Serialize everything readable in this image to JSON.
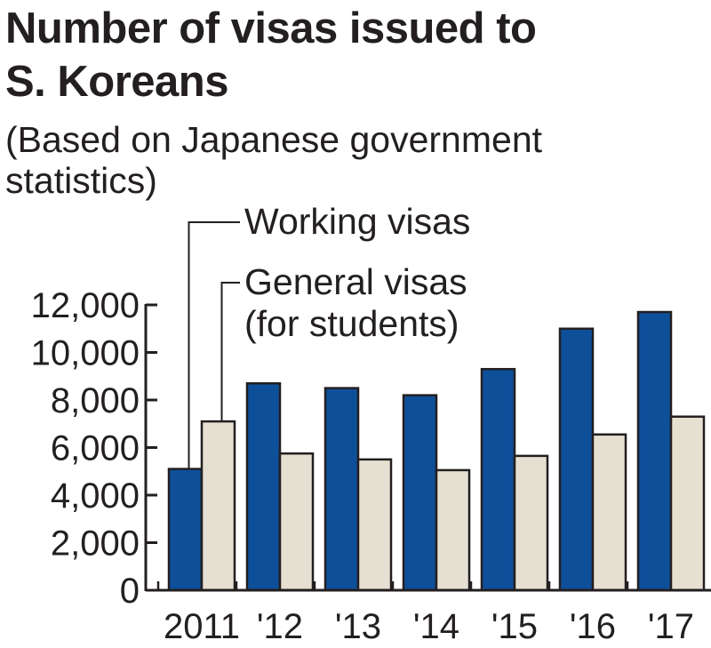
{
  "chart_data": {
    "type": "bar",
    "title_lines": [
      "Number of visas issued to",
      "S. Koreans"
    ],
    "subtitle_lines": [
      "(Based on Japanese government",
      "statistics)"
    ],
    "categories": [
      "2011",
      "'12",
      "'13",
      "'14",
      "'15",
      "'16",
      "'17"
    ],
    "series": [
      {
        "name": "Working visas",
        "color": "#0e4f9a",
        "values": [
          5100,
          8700,
          8500,
          8200,
          9300,
          11000,
          11700
        ]
      },
      {
        "name": "General visas",
        "name_line2": "(for students)",
        "color": "#e5e0d1",
        "values": [
          7100,
          5750,
          5500,
          5050,
          5650,
          6550,
          7300
        ]
      }
    ],
    "yticks": [
      "0",
      "2,000",
      "4,000",
      "6,000",
      "8,000",
      "10,000",
      "12,000"
    ],
    "ytick_values": [
      0,
      2000,
      4000,
      6000,
      8000,
      10000,
      12000
    ],
    "ylim": [
      0,
      12000
    ],
    "xlabel": "",
    "ylabel": "",
    "grid": false,
    "legend_placement": "top-left, leader lines to 2011 bars"
  }
}
